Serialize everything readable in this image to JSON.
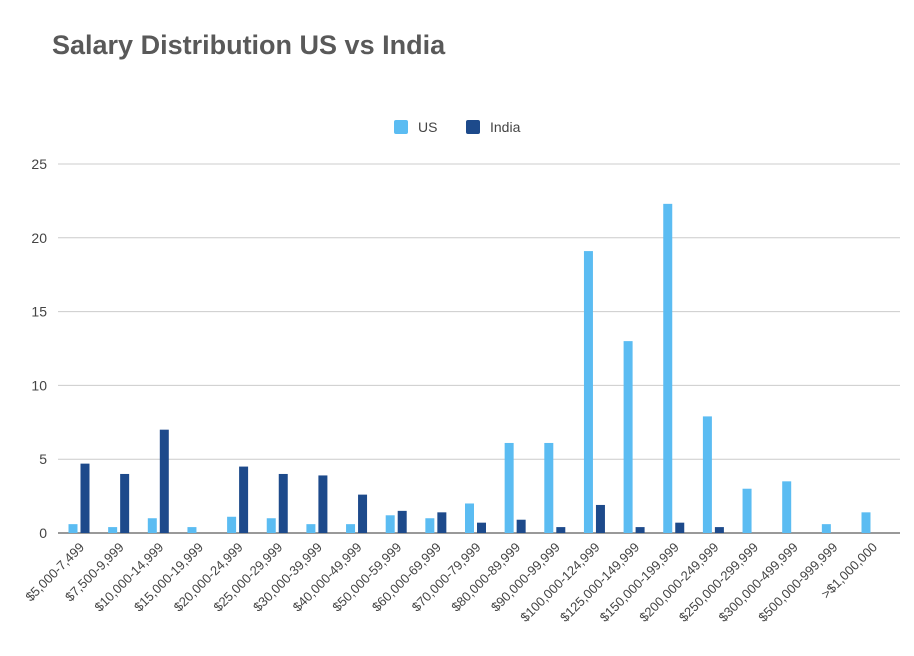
{
  "chart_data": {
    "type": "bar",
    "title": "Salary Distribution US vs India",
    "categories": [
      "$5,000-7,499",
      "$7,500-9,999",
      "$10,000-14,999",
      "$15,000-19,999",
      "$20,000-24,999",
      "$25,000-29,999",
      "$30,000-39,999",
      "$40,000-49,999",
      "$50,000-59,999",
      "$60,000-69,999",
      "$70,000-79,999",
      "$80,000-89,999",
      "$90,000-99,999",
      "$100,000-124,999",
      "$125,000-149,999",
      "$150,000-199,999",
      "$200,000-249,999",
      "$250,000-299,999",
      "$300,000-499,999",
      "$500,000-999,999",
      ">$1,000,000"
    ],
    "series": [
      {
        "name": "US",
        "color": "#5bbcf2",
        "values": [
          0.6,
          0.4,
          1.0,
          0.4,
          1.1,
          1.0,
          0.6,
          0.6,
          1.2,
          1.0,
          2.0,
          6.1,
          6.1,
          19.1,
          13.0,
          22.3,
          7.9,
          3.0,
          3.5,
          0.6,
          1.4
        ]
      },
      {
        "name": "India",
        "color": "#1d4a8b",
        "values": [
          4.7,
          4.0,
          7.0,
          0.0,
          4.5,
          4.0,
          3.9,
          2.6,
          1.5,
          1.4,
          0.7,
          0.9,
          0.4,
          1.9,
          0.4,
          0.7,
          0.4,
          0.0,
          0.0,
          0.0,
          0.0
        ]
      }
    ],
    "ylim": [
      0,
      25
    ],
    "yticks": [
      "0",
      "5",
      "10",
      "15",
      "20",
      "25"
    ],
    "xlabel": "",
    "ylabel": "",
    "grid": true,
    "legend_position": "top-center"
  }
}
